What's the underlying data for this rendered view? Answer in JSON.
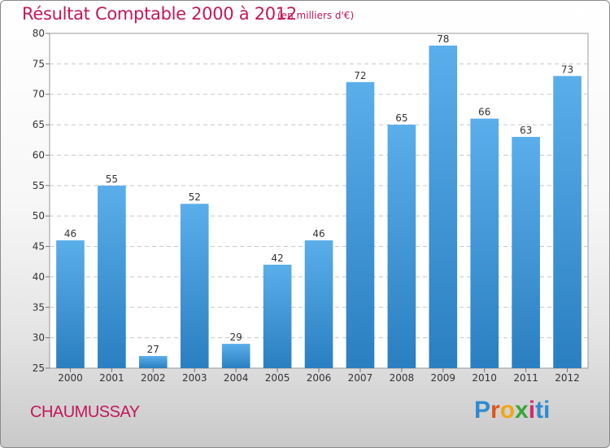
{
  "header": {
    "title": "Résultat Comptable 2000 à 2012",
    "subtitle": "(en milliers d'€)"
  },
  "footer": {
    "commune": "CHAUMUSSAY",
    "brand": "Proxiti",
    "brand_letters": [
      "P",
      "r",
      "o",
      "x",
      "i",
      "ti"
    ]
  },
  "chart_data": {
    "type": "bar",
    "title": "Résultat Comptable 2000 à 2012",
    "subtitle": "(en milliers d'€)",
    "xlabel": "",
    "ylabel": "",
    "categories": [
      "2000",
      "2001",
      "2002",
      "2003",
      "2004",
      "2005",
      "2006",
      "2007",
      "2008",
      "2009",
      "2010",
      "2011",
      "2012"
    ],
    "values": [
      46,
      55,
      27,
      52,
      29,
      42,
      46,
      72,
      65,
      78,
      66,
      63,
      73
    ],
    "ylim": [
      25,
      80
    ],
    "yticks": [
      25,
      30,
      35,
      40,
      45,
      50,
      55,
      60,
      65,
      70,
      75,
      80
    ],
    "grid": true,
    "bar_color_top": "#5aaeea",
    "bar_color_bottom": "#2a7fc1"
  }
}
